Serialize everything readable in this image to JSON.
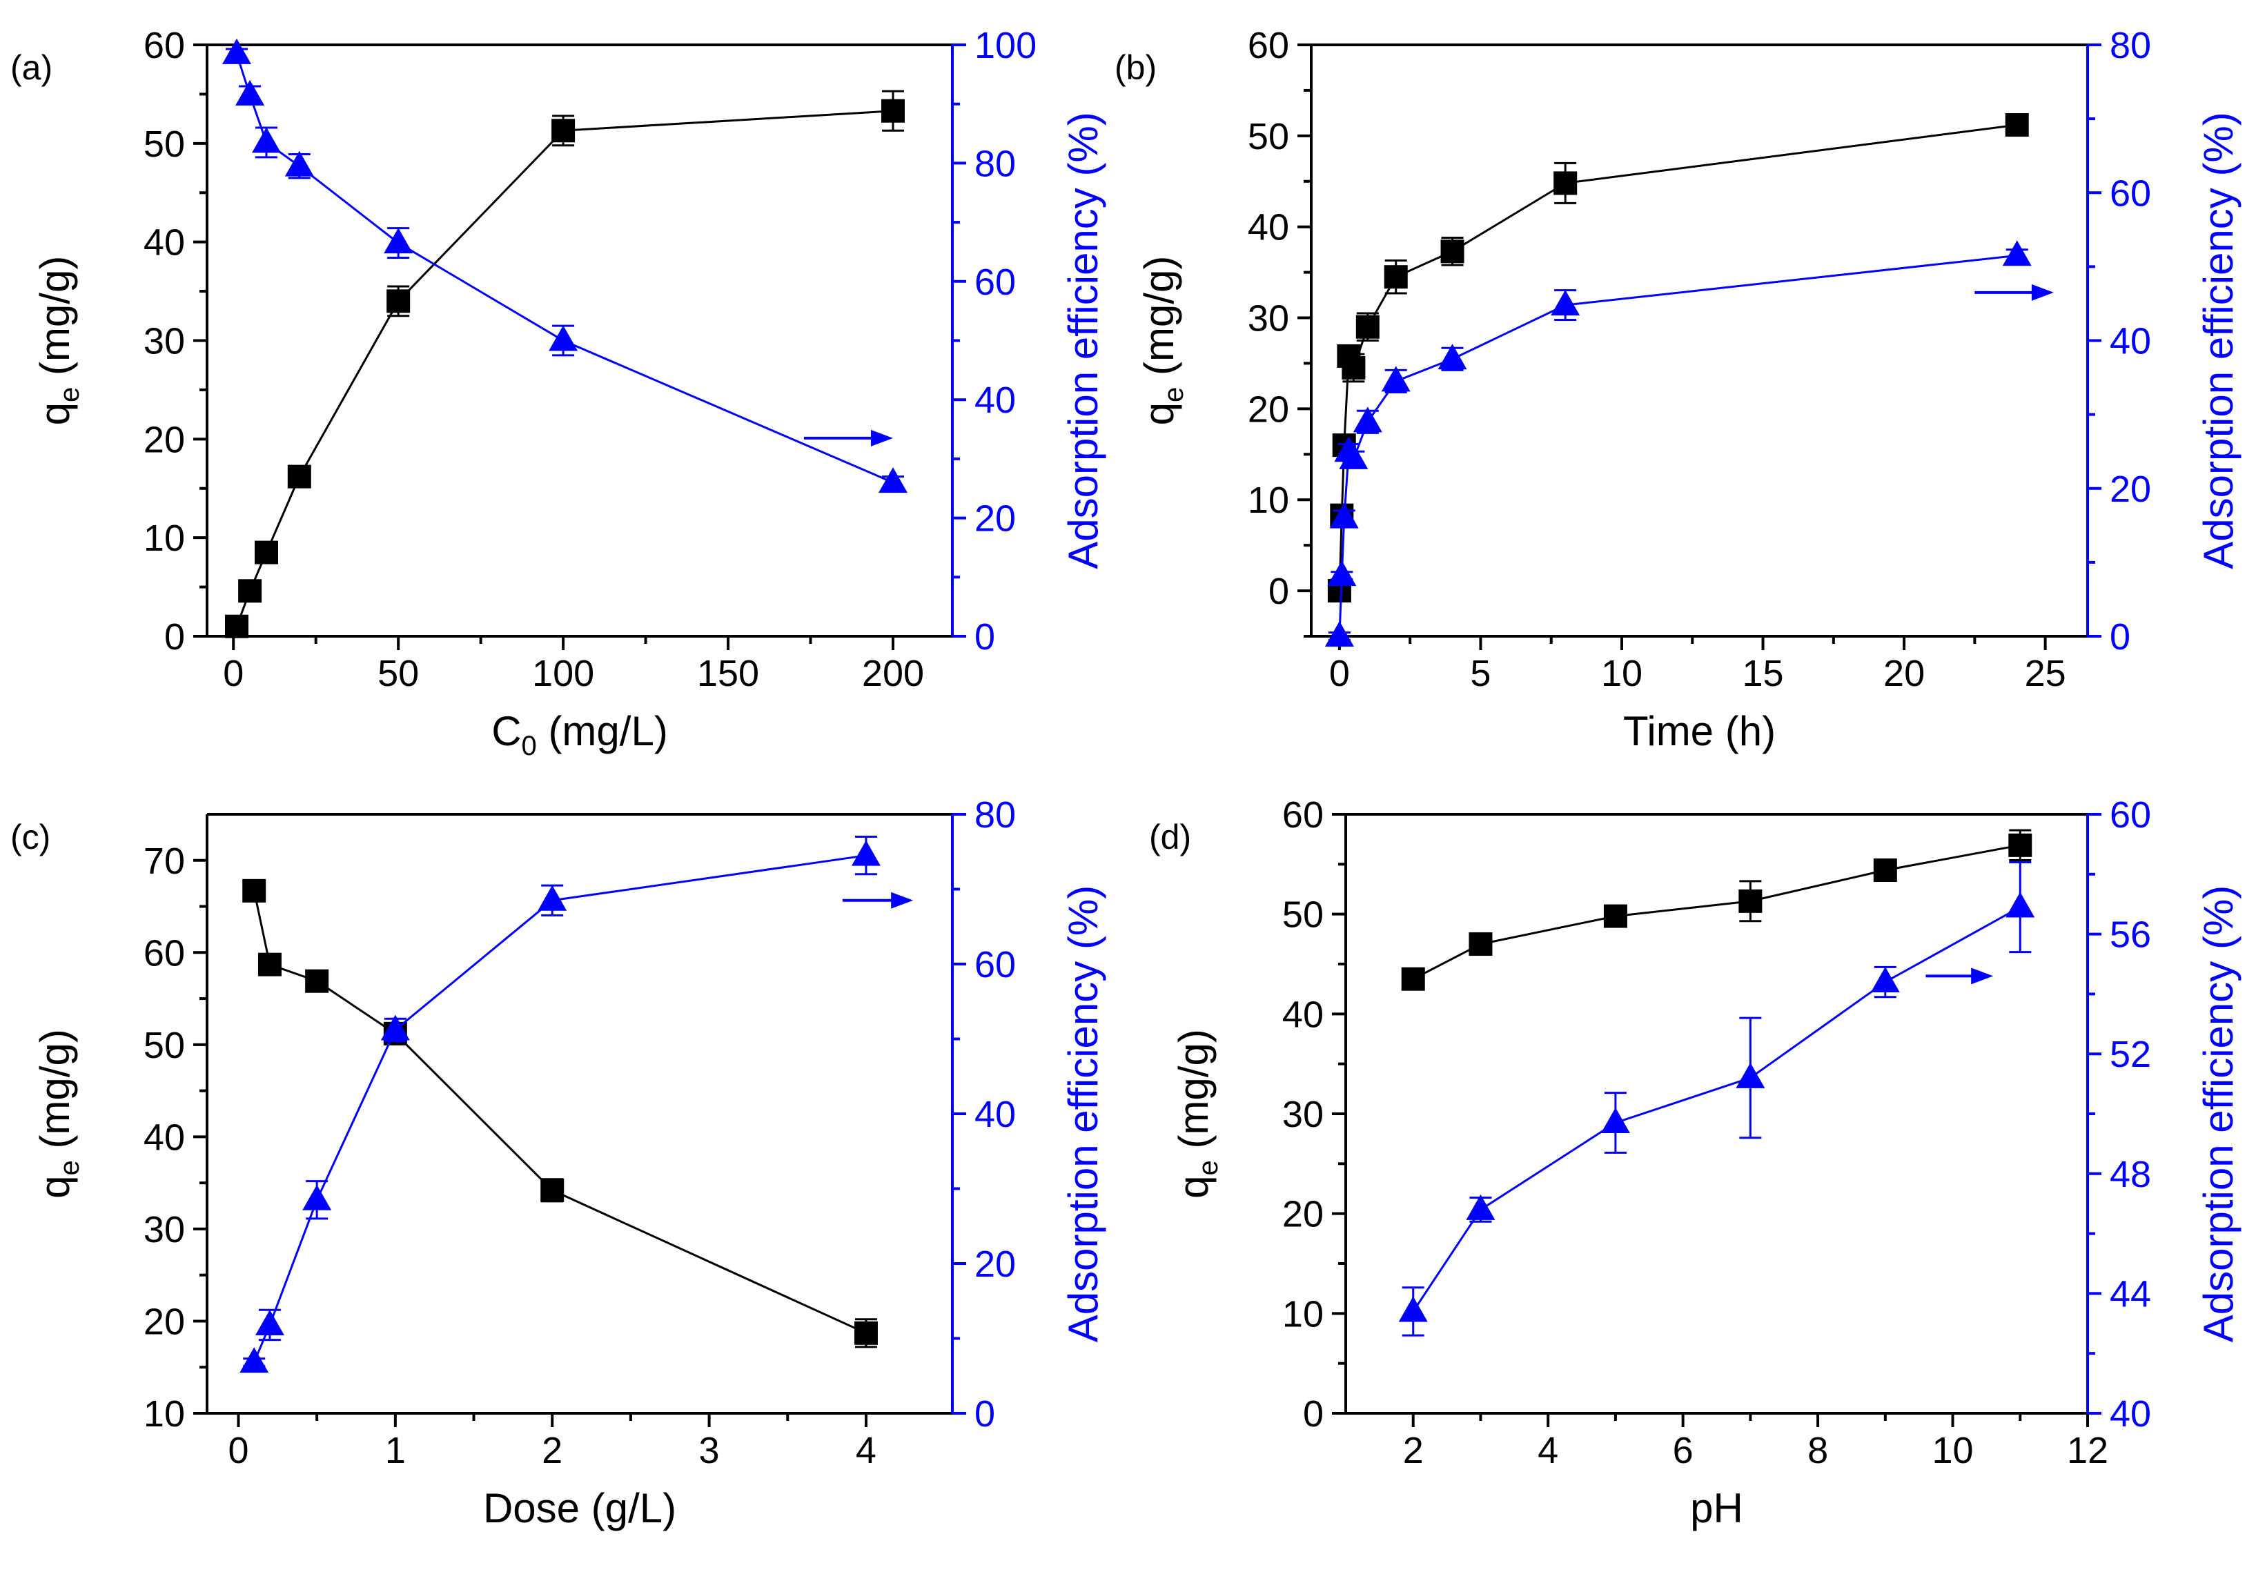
{
  "colors": {
    "left": "#000000",
    "right": "#0000ff"
  },
  "chart_data": [
    {
      "type": "line",
      "panel_label": "(a)",
      "xlabel": "C",
      "xlabel_sub": "0",
      "xlabel_unit": " (mg/L)",
      "ylabel": "q",
      "ylabel_sub": "e",
      "ylabel_unit": " (mg/g)",
      "y2label": "Adsorption efficiency (%)",
      "xlim": [
        -8,
        218
      ],
      "xticks": [
        0,
        50,
        100,
        150,
        200
      ],
      "ylim": [
        0,
        60
      ],
      "yticks": [
        0,
        10,
        20,
        30,
        40,
        50,
        60
      ],
      "y2lim": [
        0,
        100
      ],
      "y2ticks": [
        0,
        20,
        40,
        60,
        80,
        100
      ],
      "arrow": {
        "x": [
          173,
          200
        ],
        "y2": 33.5
      },
      "series": [
        {
          "name": "q_e",
          "axis": "left",
          "marker": "square",
          "x": [
            1,
            5,
            10,
            20,
            50,
            100,
            200
          ],
          "y": [
            1.0,
            4.6,
            8.5,
            16.2,
            34.0,
            51.3,
            53.3
          ],
          "err": [
            0.4,
            0.3,
            0.5,
            0.5,
            1.5,
            1.5,
            2.0
          ]
        },
        {
          "name": "Adsorption efficiency",
          "axis": "right",
          "marker": "triangle",
          "x": [
            1,
            5,
            10,
            20,
            50,
            100,
            200
          ],
          "y": [
            98.5,
            91.5,
            83.5,
            79.5,
            66.5,
            50.0,
            26.0
          ],
          "err": [
            0.8,
            1.5,
            2.5,
            2.0,
            2.5,
            2.5,
            1.0
          ]
        }
      ]
    },
    {
      "type": "line",
      "panel_label": "(b)",
      "xlabel": "Time",
      "xlabel_sub": "",
      "xlabel_unit": " (h)",
      "ylabel": "q",
      "ylabel_sub": "e",
      "ylabel_unit": " (mg/g)",
      "y2label": "Adsorption efficiency (%)",
      "xlim": [
        -1,
        26.5
      ],
      "xticks": [
        0,
        5,
        10,
        15,
        20,
        25
      ],
      "ylim": [
        -5,
        60
      ],
      "yticks": [
        0,
        10,
        20,
        30,
        40,
        50,
        60
      ],
      "y2lim": [
        0,
        80
      ],
      "y2ticks": [
        0,
        20,
        40,
        60,
        80
      ],
      "arrow": {
        "x": [
          22.5,
          25.3
        ],
        "y2": 46.5
      },
      "series": [
        {
          "name": "q_e",
          "axis": "left",
          "marker": "square",
          "x": [
            0,
            0.083,
            0.167,
            0.33,
            0.5,
            1,
            2,
            4,
            8,
            24
          ],
          "y": [
            0,
            8.3,
            16,
            25.8,
            24.5,
            29.0,
            34.5,
            37.3,
            44.8,
            51.2
          ],
          "err": [
            0.5,
            0.5,
            0.5,
            1.0,
            1.5,
            1.5,
            1.8,
            1.5,
            2.2,
            1.0
          ]
        },
        {
          "name": "Adsorption efficiency",
          "axis": "right",
          "marker": "triangle",
          "x": [
            0,
            0.083,
            0.167,
            0.33,
            0.5,
            1,
            2,
            4,
            8,
            24
          ],
          "y": [
            0,
            8.2,
            16,
            25,
            24,
            29,
            34.5,
            37.5,
            44.8,
            51.5
          ],
          "err": [
            0.5,
            0.5,
            1.0,
            1.0,
            1.0,
            1.5,
            1.5,
            1.5,
            2.0,
            0.8
          ]
        }
      ]
    },
    {
      "type": "line",
      "panel_label": "(c)",
      "xlabel": "Dose",
      "xlabel_sub": "",
      "xlabel_unit": " (g/L)",
      "ylabel": "q",
      "ylabel_sub": "e",
      "ylabel_unit": " (mg/g)",
      "y2label": "Adsorption efficiency (%)",
      "xlim": [
        -0.2,
        4.55
      ],
      "xticks": [
        0,
        1,
        2,
        3,
        4
      ],
      "ylim": [
        10,
        75
      ],
      "yticks": [
        10,
        20,
        30,
        40,
        50,
        60,
        70
      ],
      "y2lim": [
        0,
        80
      ],
      "y2ticks": [
        0,
        20,
        40,
        60,
        80
      ],
      "arrow": {
        "x": [
          3.85,
          4.3
        ],
        "y2": 68.5
      },
      "series": [
        {
          "name": "q_e",
          "axis": "left",
          "marker": "square",
          "x": [
            0.1,
            0.2,
            0.5,
            1,
            2,
            4
          ],
          "y": [
            66.7,
            58.7,
            56.9,
            51.2,
            34.2,
            18.7
          ],
          "err": [
            0.5,
            0.5,
            0.5,
            0.8,
            1.2,
            1.5
          ]
        },
        {
          "name": "Adsorption efficiency",
          "axis": "right",
          "marker": "triangle",
          "x": [
            0.1,
            0.2,
            0.5,
            1,
            2,
            4
          ],
          "y": [
            6.8,
            11.8,
            28.5,
            51.2,
            68.5,
            74.5
          ],
          "err": [
            0.5,
            2.0,
            2.5,
            1.5,
            2.0,
            2.5
          ]
        }
      ]
    },
    {
      "type": "line",
      "panel_label": "(d)",
      "xlabel": "pH",
      "xlabel_sub": "",
      "xlabel_unit": "",
      "ylabel": "q",
      "ylabel_sub": "e",
      "ylabel_unit": " (mg/g)",
      "y2label": "Adsorption efficiency (%)",
      "xlim": [
        1,
        12
      ],
      "xticks": [
        2,
        4,
        6,
        8,
        10,
        12
      ],
      "ylim": [
        0,
        60
      ],
      "yticks": [
        0,
        10,
        20,
        30,
        40,
        50,
        60
      ],
      "y2lim": [
        40,
        60
      ],
      "y2ticks": [
        40,
        44,
        48,
        52,
        56,
        60
      ],
      "arrow": {
        "x": [
          9.6,
          10.6
        ],
        "y2": 54.6
      },
      "series": [
        {
          "name": "q_e",
          "axis": "left",
          "marker": "square",
          "x": [
            2,
            3,
            5,
            7,
            9,
            11
          ],
          "y": [
            43.5,
            47.0,
            49.8,
            51.3,
            54.4,
            56.9
          ],
          "err": [
            0.5,
            0.5,
            0.8,
            2.0,
            0.7,
            1.5
          ]
        },
        {
          "name": "Adsorption efficiency",
          "axis": "right",
          "marker": "triangle",
          "x": [
            2,
            3,
            5,
            7,
            9,
            11
          ],
          "y": [
            43.4,
            46.8,
            49.7,
            51.2,
            54.4,
            56.9
          ],
          "err": [
            0.8,
            0.4,
            1.0,
            2.0,
            0.5,
            1.5
          ]
        }
      ]
    }
  ]
}
